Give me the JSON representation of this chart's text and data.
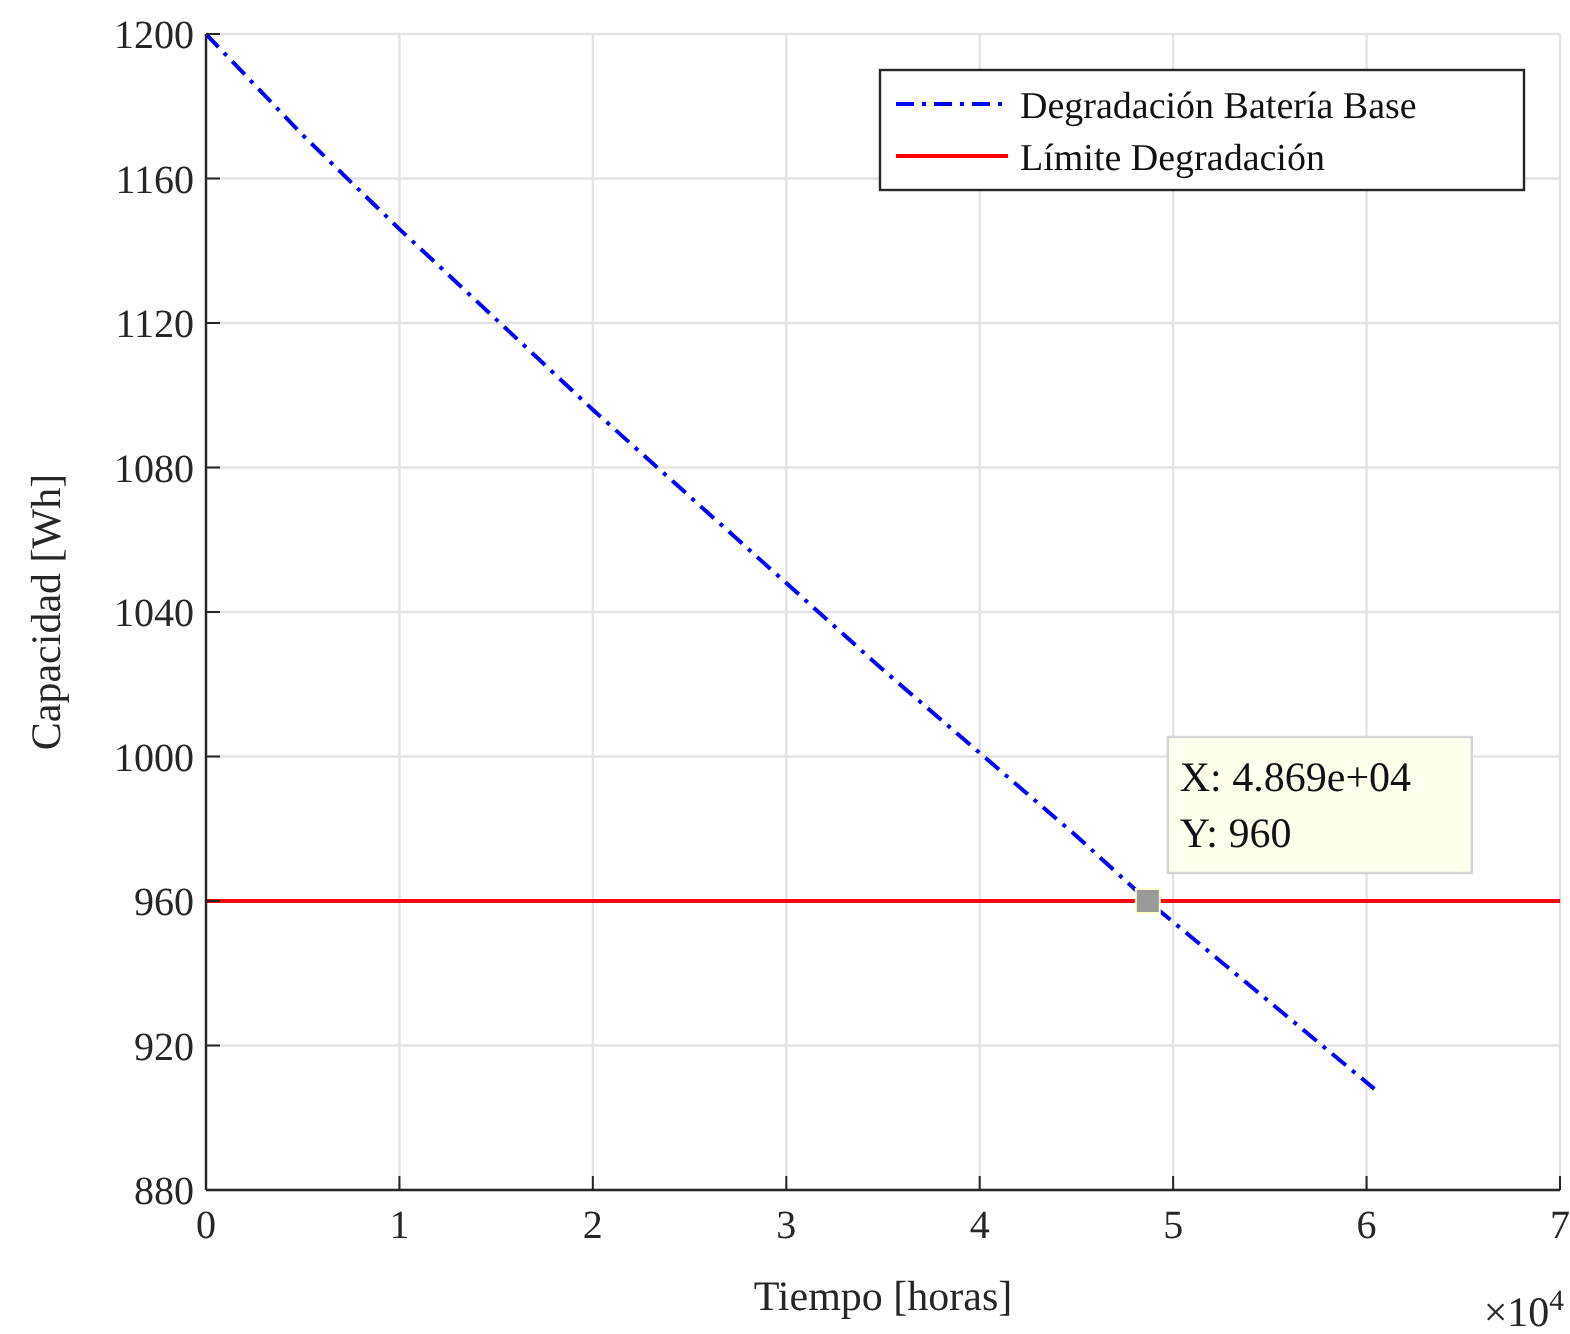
{
  "chart_data": {
    "type": "line",
    "xlabel": "Tiempo [horas]",
    "ylabel": "Capacidad [Wh]",
    "x": [
      0,
      0.5,
      1,
      1.5,
      2,
      2.5,
      3,
      3.5,
      4,
      4.5,
      4.869,
      5.5,
      6.04
    ],
    "series": [
      {
        "name": "Degradación Batería Base",
        "color": "#0000ff",
        "values": [
          1200,
          1172,
          1146,
          1121,
          1096,
          1072,
          1048,
          1024,
          1001,
          978,
          960,
          932,
          908
        ],
        "line_style": "dashed"
      }
    ],
    "xlim": [
      0,
      7
    ],
    "xticks": [
      0,
      1,
      2,
      3,
      4,
      5,
      6,
      7
    ],
    "ylim": [
      880,
      1200
    ],
    "yticks": [
      880,
      920,
      960,
      1000,
      1040,
      1080,
      1120,
      1160,
      1200
    ],
    "ref_lines": [
      {
        "axis": "y",
        "value": 960,
        "label": "Límite Degradación",
        "color": "#ff0000",
        "line_style": "solid"
      }
    ],
    "annotations": [
      {
        "text": "X: 4.869e+04\nY: 960",
        "x": 4.869,
        "y": 960
      },
      "×10$^{4}$"
    ],
    "grid": true,
    "legend": "top right",
    "marker": "none"
  }
}
